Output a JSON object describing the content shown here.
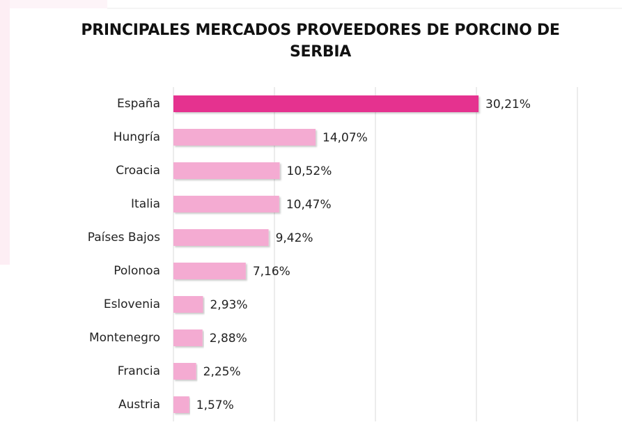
{
  "chart_data": {
    "type": "hbar",
    "title": "PRINCIPALES MERCADOS PROVEEDORES DE PORCINO DE SERBIA",
    "categories": [
      "España",
      "Hungría",
      "Croacia",
      "Italia",
      "Países Bajos",
      "Polonoa",
      "Eslovenia",
      "Montenegro",
      "Francia",
      "Austria"
    ],
    "values": [
      30.21,
      14.07,
      10.52,
      10.47,
      9.42,
      7.16,
      2.93,
      2.88,
      2.25,
      1.57
    ],
    "value_labels": [
      "30,21%",
      "14,07%",
      "10,52%",
      "10,47%",
      "9,42%",
      "7,16%",
      "2,93%",
      "2,88%",
      "2,25%",
      "1,57%"
    ],
    "colors": [
      "#e5338f",
      "#f4abd2",
      "#f4abd2",
      "#f4abd2",
      "#f4abd2",
      "#f4abd2",
      "#f4abd2",
      "#f4abd2",
      "#f4abd2",
      "#f4abd2"
    ],
    "xlim": [
      0,
      40
    ],
    "xticks": [
      0,
      10,
      20,
      30,
      40
    ],
    "grid": true
  }
}
